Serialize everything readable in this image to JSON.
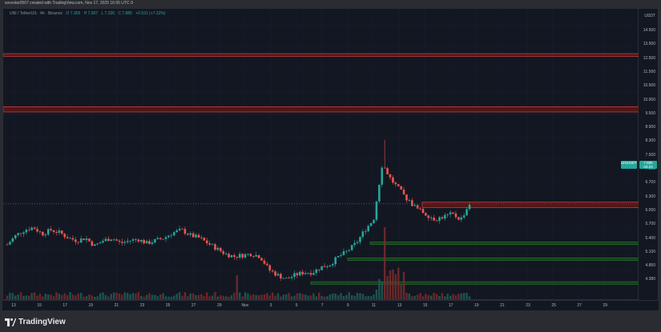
{
  "header": {
    "caption": "sovvstar0507 created with TradingView.com, Nov 17, 2025 16:55 UTC-9"
  },
  "symbol": {
    "pair": "UNI / TetherUS · 4h · Binance",
    "open": "O 7.355",
    "high": "H 7.907",
    "low": "L 7.326",
    "close": "C 7.885",
    "change": "+0.531 (+7.22%)"
  },
  "price_scale": {
    "currency": "USDT",
    "labels": [
      "14.500",
      "13.500",
      "12.500",
      "11.500",
      "10.500",
      "10.000",
      "9.500",
      "8.900",
      "8.300",
      "7.500",
      "7.100",
      "6.700",
      "6.300",
      "6.000",
      "5.700",
      "5.400",
      "5.100",
      "4.850",
      "4.380"
    ],
    "last_price": "7.885",
    "countdown": "04:23",
    "symbol_tag": "UNIUSDT"
  },
  "time_axis": {
    "labels": [
      "13",
      "15",
      "17",
      "19",
      "21",
      "23",
      "25",
      "27",
      "29",
      "Nov",
      "3",
      "5",
      "7",
      "9",
      "11",
      "13",
      "15",
      "17",
      "19",
      "21",
      "23",
      "25",
      "27",
      "29"
    ]
  },
  "footer": {
    "brand": "TradingView"
  },
  "colors": {
    "up": "#26a69a",
    "down": "#ef5350",
    "resistance": "#b71c1c",
    "support": "#1b5e20"
  },
  "chart_data": {
    "type": "candlestick",
    "title": "",
    "x_range": [
      "Oct 13",
      "Nov 29"
    ],
    "ylim": [
      4.38,
      15.0
    ],
    "resistance_zones": [
      [
        13.45,
        13.55
      ],
      [
        11.35,
        11.55
      ],
      [
        7.75,
        7.95
      ]
    ],
    "support_zones": [
      [
        6.35,
        6.45
      ],
      [
        5.75,
        5.85
      ],
      [
        4.85,
        4.95
      ]
    ],
    "close_path": [
      6.35,
      6.7,
      6.9,
      7.0,
      6.75,
      6.9,
      6.8,
      6.6,
      6.5,
      6.6,
      6.3,
      6.5,
      6.6,
      6.4,
      6.5,
      6.55,
      6.4,
      6.5,
      6.6,
      6.8,
      6.9,
      6.7,
      6.6,
      6.4,
      6.2,
      6.0,
      5.9,
      5.95,
      6.0,
      5.9,
      5.4,
      5.2,
      5.05,
      5.2,
      5.3,
      5.3,
      5.5,
      5.6,
      5.9,
      6.1,
      6.4,
      6.9,
      7.3,
      9.4,
      8.8,
      8.4,
      8.0,
      7.7,
      7.5,
      7.3,
      7.4,
      7.5,
      7.3,
      7.885
    ]
  }
}
